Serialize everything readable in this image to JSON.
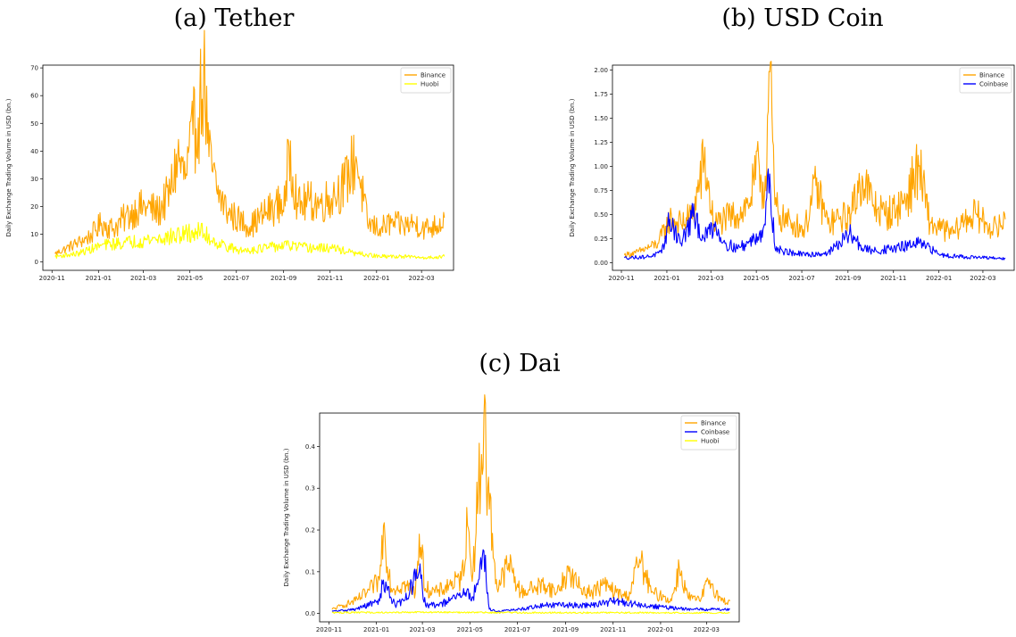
{
  "colors": {
    "binance": "#FFA500",
    "coinbase": "#0000FF",
    "huobi": "#FFFF00"
  },
  "titles": {
    "a": "(a) Tether",
    "b": "(b) USD Coin",
    "c": "(c) Dai"
  },
  "chart_data": [
    {
      "type": "line",
      "title": "(a) Tether",
      "ylabel": "Daily Exchange Trading Volume in USD (bn.)",
      "xlabel": "",
      "x_ticks": [
        "2020-11",
        "2021-01",
        "2021-03",
        "2021-05",
        "2021-07",
        "2021-09",
        "2021-11",
        "2022-01",
        "2022-03"
      ],
      "y_ticks": [
        "0",
        "10",
        "20",
        "30",
        "40",
        "50",
        "60",
        "70"
      ],
      "ylim": [
        -3,
        71
      ],
      "xlim": [
        "2020-10-20",
        "2022-04-12"
      ],
      "legend": "top-right",
      "grid": false,
      "series": [
        {
          "name": "Binance",
          "color": "#FFA500",
          "x": [
            "2020-11-05",
            "2020-11-20",
            "2020-12-05",
            "2020-12-20",
            "2021-01-05",
            "2021-01-20",
            "2021-02-05",
            "2021-02-20",
            "2021-03-05",
            "2021-03-20",
            "2021-04-05",
            "2021-04-15",
            "2021-04-25",
            "2021-05-05",
            "2021-05-12",
            "2021-05-19",
            "2021-05-26",
            "2021-06-05",
            "2021-06-20",
            "2021-07-05",
            "2021-07-20",
            "2021-08-05",
            "2021-08-20",
            "2021-09-05",
            "2021-09-07",
            "2021-09-20",
            "2021-10-05",
            "2021-10-20",
            "2021-11-05",
            "2021-11-20",
            "2021-12-05",
            "2021-12-20",
            "2022-01-05",
            "2022-01-20",
            "2022-02-05",
            "2022-02-20",
            "2022-03-05",
            "2022-03-20",
            "2022-03-31"
          ],
          "values": [
            3,
            5,
            7,
            9,
            14,
            12,
            16,
            19,
            20,
            18,
            25,
            38,
            30,
            46,
            52,
            68,
            38,
            26,
            18,
            15,
            13,
            17,
            20,
            22,
            44,
            20,
            22,
            21,
            24,
            28,
            38,
            14,
            12,
            14,
            13,
            14,
            12,
            13,
            16
          ]
        },
        {
          "name": "Huobi",
          "color": "#FFFF00",
          "x": [
            "2020-11-05",
            "2020-12-05",
            "2021-01-05",
            "2021-02-05",
            "2021-03-05",
            "2021-04-05",
            "2021-04-25",
            "2021-05-15",
            "2021-06-05",
            "2021-07-05",
            "2021-08-05",
            "2021-09-05",
            "2021-10-05",
            "2021-11-05",
            "2021-12-05",
            "2022-01-05",
            "2022-02-05",
            "2022-03-05",
            "2022-03-31"
          ],
          "values": [
            2,
            3,
            6,
            7,
            8,
            9,
            10,
            11,
            7,
            4,
            5,
            6,
            5,
            5,
            3,
            2,
            2,
            1.5,
            2
          ]
        }
      ]
    },
    {
      "type": "line",
      "title": "(b) USD Coin",
      "ylabel": "Daily Exchange Trading Volume in USD (bn.)",
      "xlabel": "",
      "x_ticks": [
        "2020-11",
        "2021-01",
        "2021-03",
        "2021-05",
        "2021-07",
        "2021-09",
        "2021-11",
        "2022-01",
        "2022-03"
      ],
      "y_ticks": [
        "0.00",
        "0.25",
        "0.50",
        "0.75",
        "1.00",
        "1.25",
        "1.50",
        "1.75",
        "2.00"
      ],
      "ylim": [
        -0.08,
        2.05
      ],
      "xlim": [
        "2020-10-20",
        "2022-04-12"
      ],
      "legend": "top-right",
      "grid": false,
      "series": [
        {
          "name": "Binance",
          "color": "#FFA500",
          "x": [
            "2020-11-05",
            "2020-11-20",
            "2020-12-05",
            "2020-12-20",
            "2021-01-05",
            "2021-01-20",
            "2021-02-05",
            "2021-02-20",
            "2021-03-05",
            "2021-03-20",
            "2021-04-05",
            "2021-04-20",
            "2021-05-05",
            "2021-05-12",
            "2021-05-19",
            "2021-05-26",
            "2021-06-05",
            "2021-06-20",
            "2021-07-05",
            "2021-07-20",
            "2021-08-05",
            "2021-08-20",
            "2021-09-05",
            "2021-09-20",
            "2021-10-05",
            "2021-10-20",
            "2021-11-05",
            "2021-11-20",
            "2021-12-05",
            "2021-12-20",
            "2022-01-05",
            "2022-01-20",
            "2022-02-05",
            "2022-02-20",
            "2022-03-05",
            "2022-03-20",
            "2022-03-31"
          ],
          "values": [
            0.08,
            0.1,
            0.15,
            0.2,
            0.45,
            0.4,
            0.5,
            1.05,
            0.4,
            0.45,
            0.5,
            0.6,
            1.0,
            0.7,
            1.98,
            0.6,
            0.45,
            0.4,
            0.35,
            0.8,
            0.4,
            0.45,
            0.5,
            0.9,
            0.6,
            0.5,
            0.55,
            0.7,
            1.0,
            0.4,
            0.35,
            0.3,
            0.45,
            0.5,
            0.4,
            0.35,
            0.45
          ]
        },
        {
          "name": "Coinbase",
          "color": "#0000FF",
          "x": [
            "2020-11-05",
            "2020-12-05",
            "2020-12-25",
            "2021-01-05",
            "2021-01-20",
            "2021-02-05",
            "2021-02-20",
            "2021-03-05",
            "2021-03-20",
            "2021-04-05",
            "2021-04-20",
            "2021-05-05",
            "2021-05-12",
            "2021-05-19",
            "2021-05-26",
            "2021-06-05",
            "2021-06-20",
            "2021-07-05",
            "2021-08-05",
            "2021-09-05",
            "2021-09-20",
            "2021-10-05",
            "2021-11-05",
            "2021-12-05",
            "2022-01-05",
            "2022-02-05",
            "2022-03-05",
            "2022-03-31"
          ],
          "values": [
            0.05,
            0.06,
            0.1,
            0.45,
            0.2,
            0.48,
            0.25,
            0.4,
            0.2,
            0.15,
            0.2,
            0.3,
            0.4,
            0.92,
            0.15,
            0.12,
            0.1,
            0.08,
            0.1,
            0.3,
            0.15,
            0.12,
            0.15,
            0.2,
            0.08,
            0.06,
            0.05,
            0.04
          ]
        }
      ]
    },
    {
      "type": "line",
      "title": "(c) Dai",
      "ylabel": "Daily Exchange Trading Volume in USD (bn.)",
      "xlabel": "",
      "x_ticks": [
        "2020-11",
        "2021-01",
        "2021-03",
        "2021-05",
        "2021-07",
        "2021-09",
        "2021-11",
        "2022-01",
        "2022-03"
      ],
      "y_ticks": [
        "0.0",
        "0.1",
        "0.2",
        "0.3",
        "0.4"
      ],
      "ylim": [
        -0.02,
        0.48
      ],
      "xlim": [
        "2020-10-20",
        "2022-04-12"
      ],
      "legend": "top-right",
      "grid": false,
      "series": [
        {
          "name": "Binance",
          "color": "#FFA500",
          "x": [
            "2020-11-05",
            "2020-11-20",
            "2020-12-05",
            "2020-12-20",
            "2021-01-05",
            "2021-01-10",
            "2021-01-20",
            "2021-02-05",
            "2021-02-20",
            "2021-02-25",
            "2021-03-05",
            "2021-03-20",
            "2021-04-05",
            "2021-04-20",
            "2021-04-28",
            "2021-05-05",
            "2021-05-12",
            "2021-05-19",
            "2021-05-24",
            "2021-06-05",
            "2021-06-20",
            "2021-07-05",
            "2021-07-20",
            "2021-08-05",
            "2021-08-20",
            "2021-09-05",
            "2021-09-20",
            "2021-10-05",
            "2021-10-20",
            "2021-11-05",
            "2021-11-20",
            "2021-12-05",
            "2021-12-20",
            "2022-01-05",
            "2022-01-15",
            "2022-01-25",
            "2022-02-05",
            "2022-02-20",
            "2022-03-05",
            "2022-03-20",
            "2022-03-31"
          ],
          "values": [
            0.01,
            0.02,
            0.03,
            0.05,
            0.08,
            0.21,
            0.06,
            0.07,
            0.05,
            0.19,
            0.06,
            0.05,
            0.07,
            0.08,
            0.21,
            0.1,
            0.29,
            0.47,
            0.3,
            0.06,
            0.12,
            0.05,
            0.06,
            0.07,
            0.05,
            0.1,
            0.06,
            0.05,
            0.07,
            0.05,
            0.04,
            0.13,
            0.05,
            0.04,
            0.03,
            0.11,
            0.04,
            0.03,
            0.08,
            0.03,
            0.03
          ]
        },
        {
          "name": "Coinbase",
          "color": "#0000FF",
          "x": [
            "2020-11-05",
            "2020-12-05",
            "2021-01-05",
            "2021-01-10",
            "2021-01-25",
            "2021-02-05",
            "2021-02-25",
            "2021-03-05",
            "2021-03-20",
            "2021-04-05",
            "2021-04-25",
            "2021-05-05",
            "2021-05-12",
            "2021-05-19",
            "2021-05-26",
            "2021-06-05",
            "2021-07-05",
            "2021-08-05",
            "2021-09-05",
            "2021-10-05",
            "2021-11-05",
            "2021-12-05",
            "2022-01-05",
            "2022-02-05",
            "2022-03-05",
            "2022-03-31"
          ],
          "values": [
            0.005,
            0.01,
            0.03,
            0.08,
            0.02,
            0.03,
            0.1,
            0.02,
            0.02,
            0.03,
            0.05,
            0.04,
            0.08,
            0.15,
            0.01,
            0.005,
            0.01,
            0.02,
            0.02,
            0.02,
            0.03,
            0.02,
            0.015,
            0.01,
            0.01,
            0.01
          ]
        },
        {
          "name": "Huobi",
          "color": "#FFFF00",
          "x": [
            "2020-11-05",
            "2021-03-05",
            "2021-07-05",
            "2021-11-05",
            "2022-03-31"
          ],
          "values": [
            0.002,
            0.003,
            0.002,
            0.002,
            0.001
          ]
        }
      ]
    }
  ]
}
